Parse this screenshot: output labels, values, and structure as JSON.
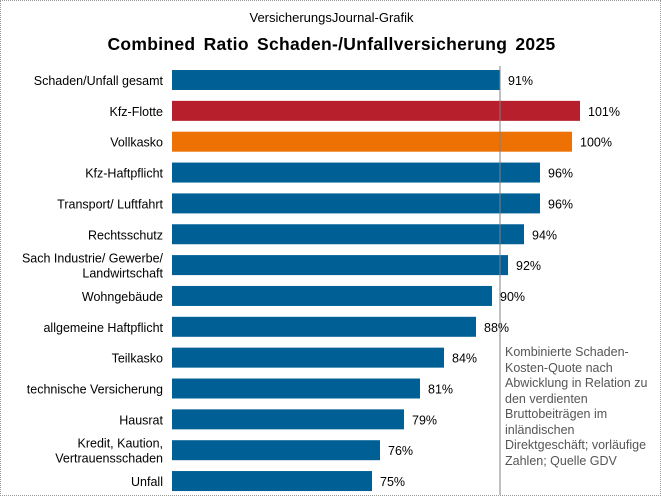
{
  "chart_data": {
    "type": "bar",
    "orientation": "horizontal",
    "subtitle": "VersicherungsJournal-Grafik",
    "title": "Combined Ratio Schaden-/Unfallversicherung 2025",
    "categories": [
      [
        "Schaden/Unfall gesamt"
      ],
      [
        "Kfz-Flotte"
      ],
      [
        "Vollkasko"
      ],
      [
        "Kfz-Haftpflicht"
      ],
      [
        "Transport/ Luftfahrt"
      ],
      [
        "Rechtsschutz"
      ],
      [
        "Sach Industrie/ Gewerbe/",
        "Landwirtschaft"
      ],
      [
        "Wohngebäude"
      ],
      [
        "allgemeine Haftpflicht"
      ],
      [
        "Teilkasko"
      ],
      [
        "technische Versicherung"
      ],
      [
        "Hausrat"
      ],
      [
        "Kredit, Kaution,",
        "Vertrauensschaden"
      ],
      [
        "Unfall"
      ]
    ],
    "values": [
      91,
      101,
      100,
      96,
      96,
      94,
      92,
      90,
      88,
      84,
      81,
      79,
      76,
      75
    ],
    "value_labels": [
      "91%",
      "101%",
      "100%",
      "96%",
      "96%",
      "94%",
      "92%",
      "90%",
      "88%",
      "84%",
      "81%",
      "79%",
      "76%",
      "75%"
    ],
    "bar_colors": [
      "#006096",
      "#B81F2D",
      "#EE7203",
      "#006096",
      "#006096",
      "#006096",
      "#006096",
      "#006096",
      "#006096",
      "#006096",
      "#006096",
      "#006096",
      "#006096",
      "#006096"
    ],
    "xlim": [
      50,
      110
    ],
    "reference_line": 91,
    "reference_line_color": "#808080",
    "grid": false,
    "legend": "none",
    "annotation": "Kombinierte Schaden-Kosten-Quote nach Abwicklung in Relation zu den verdienten Bruttobeiträgen im inländischen Direktgeschäft; vorläufige Zahlen; Quelle GDV"
  }
}
